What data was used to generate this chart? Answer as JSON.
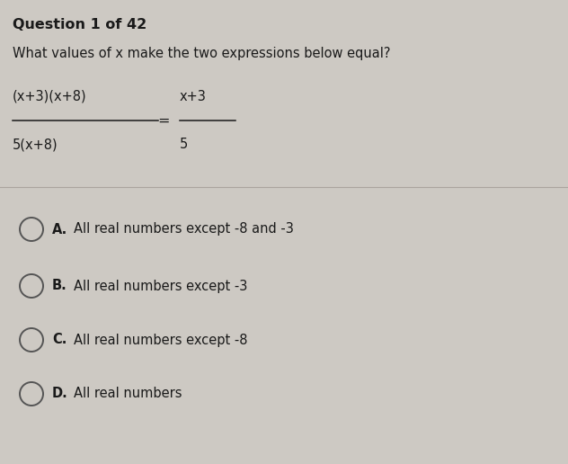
{
  "title": "Question 1 of 42",
  "question": "What values of ​x​ make the two expressions below equal?",
  "equation_numerator_left": "(x+3)(x+8)",
  "equation_denominator_left": "5(x+8)",
  "equation_equals": "=",
  "equation_numerator_right": "x+3",
  "equation_denominator_right": "5",
  "options": [
    {
      "letter": "A",
      "text": "All real numbers except -8 and -3"
    },
    {
      "letter": "B",
      "text": "All real numbers except -3"
    },
    {
      "letter": "C",
      "text": "All real numbers except -8"
    },
    {
      "letter": "D",
      "text": "All real numbers"
    }
  ],
  "bg_color": "#cdc9c3",
  "text_color": "#1a1a1a",
  "divider_color": "#aaa49e",
  "circle_color": "#555555",
  "title_fontsize": 11.5,
  "question_fontsize": 10.5,
  "equation_fontsize": 10.5,
  "option_fontsize": 10.5,
  "fig_width": 6.32,
  "fig_height": 5.16,
  "dpi": 100
}
